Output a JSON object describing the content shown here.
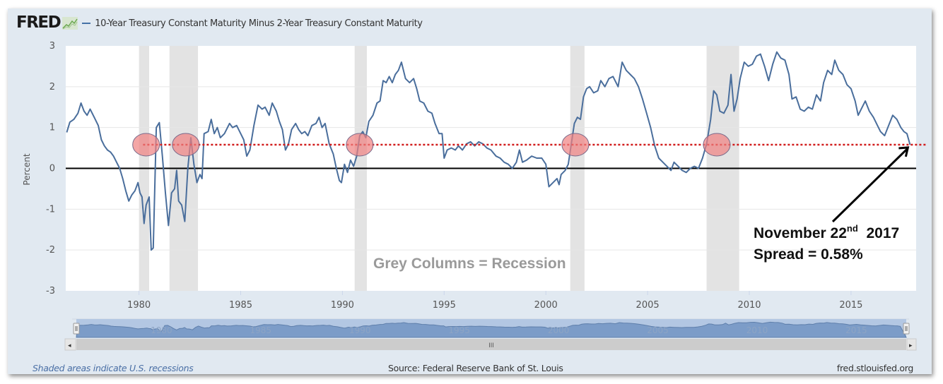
{
  "header": {
    "logo": "FRED",
    "logo_icon": "chart-line-icon",
    "series_title": "10-Year Treasury Constant Maturity Minus 2-Year Treasury Constant Maturity"
  },
  "footer": {
    "recession_note": "Shaded areas indicate U.S. recessions",
    "source": "Source: Federal Reserve Bank of St. Louis",
    "site": "fred.stlouisfed.org"
  },
  "annotations": {
    "recession_label": "Grey Columns = Recession",
    "date_line_prefix": "November 22",
    "date_line_sup": "nd",
    "date_line_year": "2017",
    "spread_line": "Spread = 0.58%"
  },
  "navigator": {
    "scroll_center_grip": "III",
    "left_arrow": "◂",
    "right_arrow": "▸"
  },
  "colors": {
    "series": "#4a6e9c",
    "recession": "#e3e3e3",
    "threshold": "#d11c1c",
    "highlight": "#f08080",
    "zero_line": "#000000",
    "panel_bg": "#e1e9f1"
  },
  "chart_data": {
    "type": "line",
    "title": "10-Year Treasury Constant Maturity Minus 2-Year Treasury Constant Maturity",
    "xlabel": "",
    "ylabel": "Percent",
    "xlim": [
      1976.4,
      2018.2
    ],
    "ylim": [
      -3,
      3
    ],
    "xticks": [
      1980,
      1985,
      1990,
      1995,
      2000,
      2005,
      2010,
      2015
    ],
    "yticks": [
      3,
      2,
      1,
      0,
      -1,
      -2,
      -3
    ],
    "grid": true,
    "legend": "top-left",
    "reference_lines": [
      {
        "name": "zero",
        "value": 0,
        "style": "solid"
      },
      {
        "name": "current-spread",
        "value": 0.58,
        "style": "dotted",
        "from": 1980.2
      }
    ],
    "recessions": [
      [
        1980.0,
        1980.5
      ],
      [
        1981.5,
        1982.9
      ],
      [
        1990.6,
        1991.2
      ],
      [
        2001.2,
        2001.9
      ],
      [
        2007.9,
        2009.5
      ]
    ],
    "highlight_circles": [
      1980.35,
      1982.3,
      1990.85,
      2001.45,
      2008.4
    ],
    "series": [
      {
        "name": "10-Year Treasury Constant Maturity Minus 2-Year Treasury Constant Maturity",
        "points": [
          [
            1976.45,
            0.88
          ],
          [
            1976.6,
            1.13
          ],
          [
            1976.8,
            1.2
          ],
          [
            1977.0,
            1.35
          ],
          [
            1977.15,
            1.6
          ],
          [
            1977.3,
            1.4
          ],
          [
            1977.45,
            1.3
          ],
          [
            1977.6,
            1.45
          ],
          [
            1977.8,
            1.25
          ],
          [
            1978.0,
            1.05
          ],
          [
            1978.15,
            0.7
          ],
          [
            1978.3,
            0.55
          ],
          [
            1978.45,
            0.45
          ],
          [
            1978.6,
            0.4
          ],
          [
            1978.75,
            0.3
          ],
          [
            1978.9,
            0.15
          ],
          [
            1979.05,
            0.0
          ],
          [
            1979.2,
            -0.25
          ],
          [
            1979.35,
            -0.55
          ],
          [
            1979.5,
            -0.8
          ],
          [
            1979.65,
            -0.65
          ],
          [
            1979.8,
            -0.55
          ],
          [
            1979.95,
            -0.35
          ],
          [
            1980.05,
            -0.6
          ],
          [
            1980.15,
            -0.7
          ],
          [
            1980.25,
            -1.35
          ],
          [
            1980.35,
            -0.9
          ],
          [
            1980.5,
            -0.7
          ],
          [
            1980.6,
            -2.0
          ],
          [
            1980.7,
            -1.95
          ],
          [
            1980.85,
            1.0
          ],
          [
            1981.0,
            1.12
          ],
          [
            1981.15,
            0.3
          ],
          [
            1981.3,
            -0.6
          ],
          [
            1981.45,
            -1.4
          ],
          [
            1981.6,
            -0.6
          ],
          [
            1981.75,
            -0.5
          ],
          [
            1981.85,
            -0.05
          ],
          [
            1981.95,
            -0.8
          ],
          [
            1982.1,
            -0.9
          ],
          [
            1982.25,
            -1.3
          ],
          [
            1982.4,
            0.0
          ],
          [
            1982.55,
            0.75
          ],
          [
            1982.7,
            0.1
          ],
          [
            1982.85,
            -0.35
          ],
          [
            1983.0,
            -0.15
          ],
          [
            1983.1,
            -0.25
          ],
          [
            1983.2,
            0.85
          ],
          [
            1983.4,
            0.9
          ],
          [
            1983.55,
            1.2
          ],
          [
            1983.7,
            0.85
          ],
          [
            1983.85,
            1.0
          ],
          [
            1984.0,
            0.75
          ],
          [
            1984.2,
            0.85
          ],
          [
            1984.45,
            1.1
          ],
          [
            1984.6,
            1.0
          ],
          [
            1984.8,
            1.05
          ],
          [
            1985.0,
            0.85
          ],
          [
            1985.15,
            0.7
          ],
          [
            1985.3,
            0.3
          ],
          [
            1985.45,
            0.45
          ],
          [
            1985.65,
            1.05
          ],
          [
            1985.85,
            1.55
          ],
          [
            1986.05,
            1.45
          ],
          [
            1986.2,
            1.5
          ],
          [
            1986.4,
            1.3
          ],
          [
            1986.55,
            1.6
          ],
          [
            1986.75,
            1.4
          ],
          [
            1986.9,
            1.15
          ],
          [
            1987.05,
            0.95
          ],
          [
            1987.2,
            0.45
          ],
          [
            1987.35,
            0.6
          ],
          [
            1987.5,
            0.95
          ],
          [
            1987.7,
            1.1
          ],
          [
            1987.85,
            0.95
          ],
          [
            1988.0,
            0.85
          ],
          [
            1988.15,
            0.9
          ],
          [
            1988.3,
            0.8
          ],
          [
            1988.5,
            1.05
          ],
          [
            1988.7,
            1.1
          ],
          [
            1988.85,
            1.25
          ],
          [
            1989.0,
            1.0
          ],
          [
            1989.15,
            1.1
          ],
          [
            1989.35,
            0.6
          ],
          [
            1989.55,
            0.35
          ],
          [
            1989.7,
            0.0
          ],
          [
            1989.85,
            -0.3
          ],
          [
            1989.95,
            -0.35
          ],
          [
            1990.1,
            0.1
          ],
          [
            1990.25,
            -0.1
          ],
          [
            1990.4,
            0.2
          ],
          [
            1990.55,
            0.05
          ],
          [
            1990.7,
            0.3
          ],
          [
            1990.85,
            0.8
          ],
          [
            1991.0,
            0.9
          ],
          [
            1991.15,
            0.75
          ],
          [
            1991.3,
            1.15
          ],
          [
            1991.5,
            1.3
          ],
          [
            1991.7,
            1.6
          ],
          [
            1991.85,
            1.65
          ],
          [
            1992.0,
            2.15
          ],
          [
            1992.15,
            2.1
          ],
          [
            1992.3,
            2.25
          ],
          [
            1992.45,
            2.1
          ],
          [
            1992.6,
            2.3
          ],
          [
            1992.75,
            2.4
          ],
          [
            1992.9,
            2.6
          ],
          [
            1993.1,
            2.2
          ],
          [
            1993.3,
            2.1
          ],
          [
            1993.5,
            2.2
          ],
          [
            1993.65,
            1.95
          ],
          [
            1993.8,
            1.65
          ],
          [
            1994.0,
            1.6
          ],
          [
            1994.2,
            1.4
          ],
          [
            1994.4,
            1.35
          ],
          [
            1994.55,
            1.1
          ],
          [
            1994.75,
            0.85
          ],
          [
            1994.9,
            0.85
          ],
          [
            1995.0,
            0.25
          ],
          [
            1995.15,
            0.45
          ],
          [
            1995.35,
            0.5
          ],
          [
            1995.55,
            0.45
          ],
          [
            1995.7,
            0.55
          ],
          [
            1995.9,
            0.45
          ],
          [
            1996.1,
            0.6
          ],
          [
            1996.3,
            0.65
          ],
          [
            1996.5,
            0.55
          ],
          [
            1996.7,
            0.65
          ],
          [
            1996.9,
            0.6
          ],
          [
            1997.1,
            0.5
          ],
          [
            1997.3,
            0.45
          ],
          [
            1997.55,
            0.3
          ],
          [
            1997.75,
            0.25
          ],
          [
            1997.95,
            0.15
          ],
          [
            1998.15,
            0.1
          ],
          [
            1998.35,
            0.0
          ],
          [
            1998.55,
            0.15
          ],
          [
            1998.7,
            0.45
          ],
          [
            1998.85,
            0.15
          ],
          [
            1999.05,
            0.2
          ],
          [
            1999.3,
            0.3
          ],
          [
            1999.55,
            0.25
          ],
          [
            1999.8,
            0.25
          ],
          [
            2000.0,
            0.1
          ],
          [
            2000.15,
            -0.45
          ],
          [
            2000.35,
            -0.35
          ],
          [
            2000.55,
            -0.25
          ],
          [
            2000.65,
            -0.4
          ],
          [
            2000.75,
            -0.15
          ],
          [
            2000.95,
            -0.05
          ],
          [
            2001.1,
            0.1
          ],
          [
            2001.25,
            0.6
          ],
          [
            2001.4,
            1.1
          ],
          [
            2001.55,
            1.25
          ],
          [
            2001.7,
            1.2
          ],
          [
            2001.85,
            1.75
          ],
          [
            2002.0,
            1.95
          ],
          [
            2002.15,
            2.0
          ],
          [
            2002.35,
            1.85
          ],
          [
            2002.55,
            1.9
          ],
          [
            2002.7,
            2.15
          ],
          [
            2002.9,
            2.0
          ],
          [
            2003.1,
            2.2
          ],
          [
            2003.3,
            2.25
          ],
          [
            2003.55,
            2.0
          ],
          [
            2003.75,
            2.6
          ],
          [
            2003.95,
            2.4
          ],
          [
            2004.15,
            2.3
          ],
          [
            2004.35,
            2.2
          ],
          [
            2004.55,
            2.0
          ],
          [
            2004.75,
            1.7
          ],
          [
            2004.95,
            1.35
          ],
          [
            2005.15,
            1.0
          ],
          [
            2005.35,
            0.55
          ],
          [
            2005.55,
            0.25
          ],
          [
            2005.75,
            0.15
          ],
          [
            2005.95,
            0.05
          ],
          [
            2006.15,
            -0.05
          ],
          [
            2006.3,
            0.15
          ],
          [
            2006.5,
            0.05
          ],
          [
            2006.7,
            -0.05
          ],
          [
            2006.9,
            -0.1
          ],
          [
            2007.1,
            0.0
          ],
          [
            2007.3,
            0.05
          ],
          [
            2007.5,
            0.0
          ],
          [
            2007.7,
            0.25
          ],
          [
            2007.9,
            0.6
          ],
          [
            2008.1,
            1.2
          ],
          [
            2008.25,
            1.9
          ],
          [
            2008.4,
            1.8
          ],
          [
            2008.55,
            1.4
          ],
          [
            2008.75,
            1.35
          ],
          [
            2008.95,
            1.55
          ],
          [
            2009.1,
            2.3
          ],
          [
            2009.25,
            1.4
          ],
          [
            2009.4,
            1.7
          ],
          [
            2009.55,
            2.2
          ],
          [
            2009.75,
            2.6
          ],
          [
            2009.95,
            2.5
          ],
          [
            2010.15,
            2.55
          ],
          [
            2010.35,
            2.75
          ],
          [
            2010.55,
            2.8
          ],
          [
            2010.75,
            2.5
          ],
          [
            2010.95,
            2.15
          ],
          [
            2011.15,
            2.55
          ],
          [
            2011.35,
            2.85
          ],
          [
            2011.55,
            2.7
          ],
          [
            2011.75,
            2.65
          ],
          [
            2011.95,
            2.3
          ],
          [
            2012.1,
            1.7
          ],
          [
            2012.3,
            1.75
          ],
          [
            2012.5,
            1.45
          ],
          [
            2012.7,
            1.4
          ],
          [
            2012.9,
            1.5
          ],
          [
            2013.1,
            1.45
          ],
          [
            2013.3,
            1.8
          ],
          [
            2013.5,
            1.65
          ],
          [
            2013.65,
            2.1
          ],
          [
            2013.85,
            2.4
          ],
          [
            2014.05,
            2.3
          ],
          [
            2014.2,
            2.65
          ],
          [
            2014.4,
            2.4
          ],
          [
            2014.6,
            2.3
          ],
          [
            2014.8,
            2.05
          ],
          [
            2015.0,
            1.95
          ],
          [
            2015.2,
            1.65
          ],
          [
            2015.35,
            1.3
          ],
          [
            2015.5,
            1.45
          ],
          [
            2015.7,
            1.65
          ],
          [
            2015.9,
            1.4
          ],
          [
            2016.1,
            1.25
          ],
          [
            2016.3,
            1.05
          ],
          [
            2016.45,
            0.9
          ],
          [
            2016.65,
            0.8
          ],
          [
            2016.85,
            1.05
          ],
          [
            2017.05,
            1.3
          ],
          [
            2017.25,
            1.2
          ],
          [
            2017.45,
            1.0
          ],
          [
            2017.6,
            0.9
          ],
          [
            2017.75,
            0.85
          ],
          [
            2017.9,
            0.58
          ]
        ]
      }
    ]
  }
}
